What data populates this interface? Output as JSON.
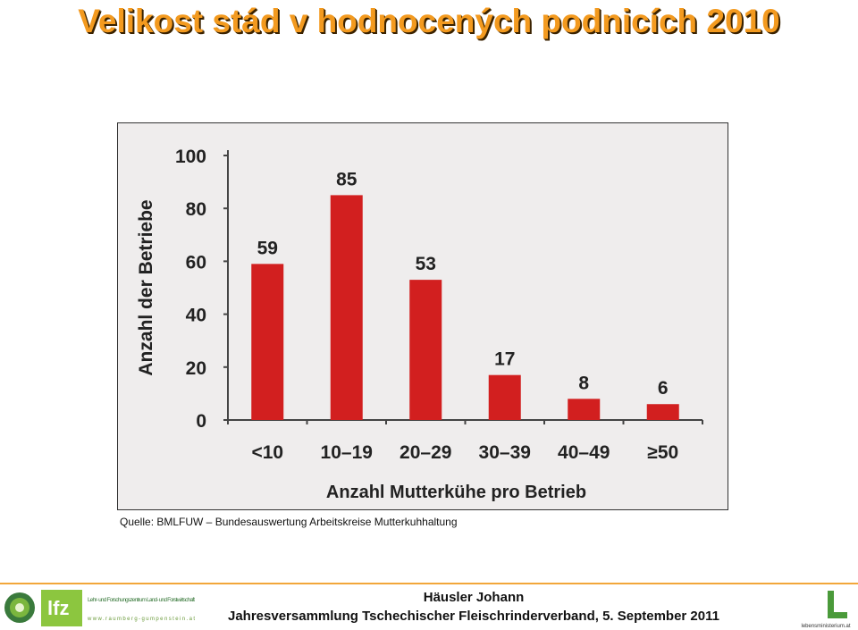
{
  "slide": {
    "title": "Velikost stád v hodnocených podnicích 2010",
    "source": "Quelle: BMLFUW – Bundesauswertung Arbeitskreise Mutterkuhhaltung"
  },
  "footer": {
    "author": "Häusler Johann",
    "event": "Jahresversammlung Tschechischer Fleischrinderverband, 5. September 2011",
    "logo_left_text": "lfz",
    "logo_left_caption": "Lehr- und Forschungszentrum Land- und Forstwirtschaft",
    "logo_left_url": "www.raumberg-gumpenstein.at",
    "logo_right_text": "lebensministerium.at"
  },
  "colors": {
    "title": "#f39a1f",
    "bar": "#d21f1f",
    "chart_bg": "#efeded",
    "footer_line": "#f2a73a"
  },
  "chart_data": {
    "type": "bar",
    "title": "",
    "xlabel": "Anzahl Mutterkühe pro Betrieb",
    "ylabel": "Anzahl der Betriebe",
    "categories": [
      "<10",
      "10–19",
      "20–29",
      "30–39",
      "40–49",
      "≥50"
    ],
    "values": [
      59,
      85,
      53,
      17,
      8,
      6
    ],
    "ylim": [
      0,
      100
    ],
    "yticks": [
      0,
      20,
      40,
      60,
      80,
      100
    ],
    "grid": false,
    "legend": "none"
  }
}
